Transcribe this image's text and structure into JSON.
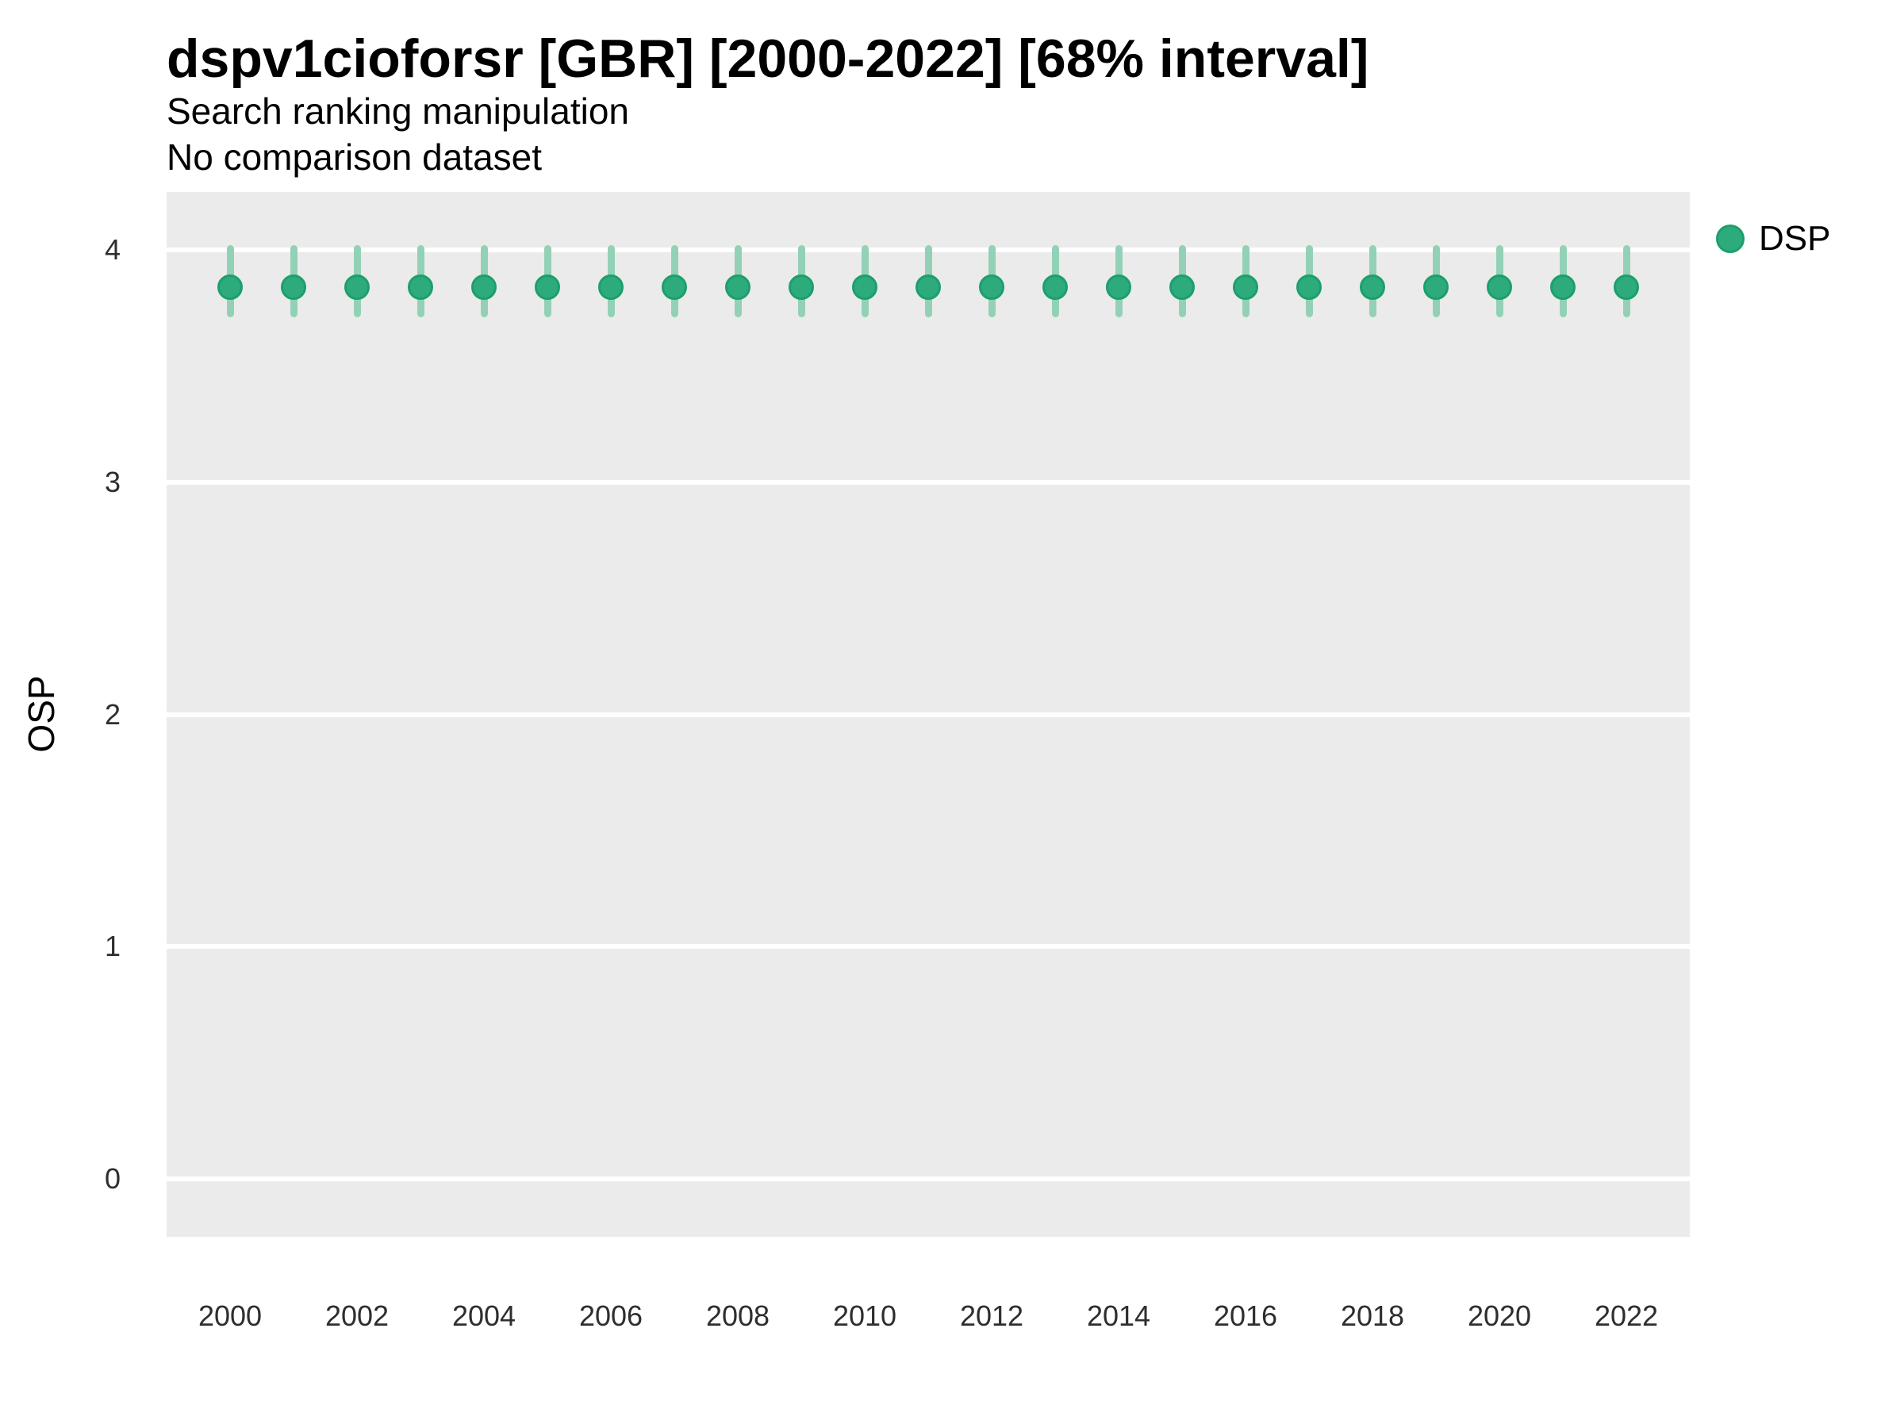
{
  "header": {
    "title": "dspv1cioforsr [GBR] [2000-2022] [68% interval]",
    "subtitle": "Search ranking manipulation",
    "subtitle2": "No comparison dataset"
  },
  "y_axis": {
    "title": "OSP",
    "ticks": [
      4,
      3,
      2,
      1,
      0
    ]
  },
  "x_axis": {
    "tick_years": [
      2000,
      2002,
      2004,
      2006,
      2008,
      2010,
      2012,
      2014,
      2016,
      2018,
      2020,
      2022
    ]
  },
  "legend": {
    "items": [
      {
        "label": "DSP",
        "color": "#2eab7d"
      }
    ]
  },
  "colors": {
    "panel_bg": "#ebebeb",
    "gridline": "#ffffff",
    "point_fill": "#2eab7d",
    "point_border": "#1c9f6c",
    "errorbar": "#93d1b7",
    "tick_text": "#2e2e2e",
    "title_text": "#000000"
  },
  "chart_data": {
    "type": "scatter",
    "title": "dspv1cioforsr [GBR] [2000-2022] [68% interval]",
    "subtitle": "Search ranking manipulation",
    "note": "No comparison dataset",
    "xlabel": "",
    "ylabel": "OSP",
    "xlim": [
      1999,
      2023
    ],
    "ylim": [
      -0.25,
      4.25
    ],
    "grid": "horizontal-major-only",
    "legend_position": "right-top",
    "interval": "68%",
    "x": [
      2000,
      2001,
      2002,
      2003,
      2004,
      2005,
      2006,
      2007,
      2008,
      2009,
      2010,
      2011,
      2012,
      2013,
      2014,
      2015,
      2016,
      2017,
      2018,
      2019,
      2020,
      2021,
      2022
    ],
    "series": [
      {
        "name": "DSP",
        "values": [
          3.84,
          3.84,
          3.84,
          3.84,
          3.84,
          3.84,
          3.84,
          3.84,
          3.84,
          3.84,
          3.84,
          3.84,
          3.84,
          3.84,
          3.84,
          3.84,
          3.84,
          3.84,
          3.84,
          3.84,
          3.84,
          3.84,
          3.84
        ],
        "lower_68": [
          3.72,
          3.72,
          3.72,
          3.72,
          3.72,
          3.72,
          3.72,
          3.72,
          3.72,
          3.72,
          3.72,
          3.72,
          3.72,
          3.72,
          3.72,
          3.72,
          3.72,
          3.72,
          3.72,
          3.72,
          3.72,
          3.72,
          3.72
        ],
        "upper_68": [
          4.01,
          4.01,
          4.01,
          4.01,
          4.01,
          4.01,
          4.01,
          4.01,
          4.01,
          4.01,
          4.01,
          4.01,
          4.01,
          4.01,
          4.01,
          4.01,
          4.01,
          4.01,
          4.01,
          4.01,
          4.01,
          4.01,
          4.01
        ]
      }
    ]
  }
}
